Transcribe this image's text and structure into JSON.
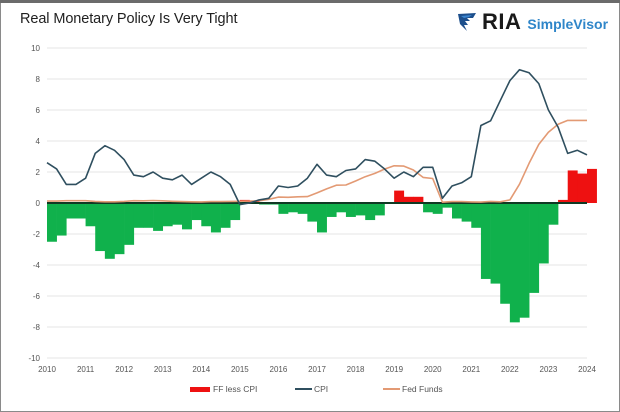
{
  "header": {
    "title": "Real Monetary Policy Is Very Tight",
    "logo": {
      "icon": "ria-eagle-shield-icon",
      "brand": "RIA",
      "product": "SimpleVisor"
    }
  },
  "colors": {
    "positive_bar": "#ee1111",
    "negative_bar": "#10b14c",
    "cpi_line": "#2f4f5f",
    "fed_funds_line": "#e39a74",
    "zero_line": "#0f3a24",
    "grid": "#e6e6e6",
    "brand_blue": "#2f86c9"
  },
  "chart_data": {
    "type": "bar",
    "title": "Real Monetary Policy Is Very Tight",
    "xlabel": "",
    "ylabel": "",
    "ylim": [
      -10,
      10
    ],
    "yticks": [
      10,
      8,
      6,
      4,
      2,
      0,
      -2,
      -4,
      -6,
      -8,
      -10
    ],
    "xlim": [
      2010,
      2024
    ],
    "xticks": [
      "2010",
      "2011",
      "2012",
      "2013",
      "2014",
      "2015",
      "2016",
      "2017",
      "2018",
      "2019",
      "2020",
      "2021",
      "2022",
      "2023",
      "2024"
    ],
    "grid": true,
    "legend_position": "bottom",
    "legend": [
      "FF less CPI",
      "CPI",
      "Fed Funds"
    ],
    "x": [
      2010.0,
      2010.25,
      2010.5,
      2010.75,
      2011.0,
      2011.25,
      2011.5,
      2011.75,
      2012.0,
      2012.25,
      2012.5,
      2012.75,
      2013.0,
      2013.25,
      2013.5,
      2013.75,
      2014.0,
      2014.25,
      2014.5,
      2014.75,
      2015.0,
      2015.25,
      2015.5,
      2015.75,
      2016.0,
      2016.25,
      2016.5,
      2016.75,
      2017.0,
      2017.25,
      2017.5,
      2017.75,
      2018.0,
      2018.25,
      2018.5,
      2018.75,
      2019.0,
      2019.25,
      2019.5,
      2019.75,
      2020.0,
      2020.25,
      2020.5,
      2020.75,
      2021.0,
      2021.25,
      2021.5,
      2021.75,
      2022.0,
      2022.25,
      2022.5,
      2022.75,
      2023.0,
      2023.25,
      2023.5,
      2023.75,
      2024.0
    ],
    "series": [
      {
        "name": "CPI",
        "kind": "line",
        "values": [
          2.6,
          2.2,
          1.2,
          1.2,
          1.6,
          3.2,
          3.7,
          3.4,
          2.8,
          1.8,
          1.7,
          2.0,
          1.6,
          1.5,
          1.8,
          1.2,
          1.6,
          2.0,
          1.7,
          1.2,
          -0.1,
          0.0,
          0.2,
          0.3,
          1.1,
          1.0,
          1.1,
          1.6,
          2.5,
          1.8,
          1.7,
          2.1,
          2.2,
          2.8,
          2.7,
          2.2,
          1.6,
          2.0,
          1.7,
          2.3,
          2.3,
          0.3,
          1.1,
          1.3,
          1.7,
          5.0,
          5.3,
          6.6,
          7.9,
          8.6,
          8.4,
          7.7,
          6.0,
          4.9,
          3.2,
          3.4,
          3.1
        ]
      },
      {
        "name": "Fed Funds",
        "kind": "line",
        "values": [
          0.12,
          0.12,
          0.15,
          0.15,
          0.15,
          0.1,
          0.08,
          0.08,
          0.1,
          0.15,
          0.14,
          0.16,
          0.14,
          0.11,
          0.09,
          0.08,
          0.07,
          0.09,
          0.09,
          0.1,
          0.11,
          0.13,
          0.14,
          0.24,
          0.38,
          0.37,
          0.4,
          0.41,
          0.65,
          0.91,
          1.15,
          1.16,
          1.42,
          1.7,
          1.91,
          2.19,
          2.4,
          2.38,
          2.13,
          1.65,
          1.58,
          0.05,
          0.09,
          0.09,
          0.07,
          0.06,
          0.1,
          0.08,
          0.2,
          1.21,
          2.56,
          3.78,
          4.57,
          5.08,
          5.33,
          5.33,
          5.33
        ]
      },
      {
        "name": "FF less CPI",
        "kind": "bar",
        "values": [
          -2.5,
          -2.1,
          -1.0,
          -1.0,
          -1.5,
          -3.1,
          -3.6,
          -3.3,
          -2.7,
          -1.6,
          -1.6,
          -1.8,
          -1.5,
          -1.4,
          -1.7,
          -1.1,
          -1.5,
          -1.9,
          -1.6,
          -1.1,
          0.2,
          0.1,
          -0.1,
          -0.1,
          -0.7,
          -0.6,
          -0.7,
          -1.2,
          -1.9,
          -0.9,
          -0.6,
          -0.9,
          -0.8,
          -1.1,
          -0.8,
          0.0,
          0.8,
          0.4,
          0.4,
          -0.6,
          -0.7,
          -0.3,
          -1.0,
          -1.2,
          -1.6,
          -4.9,
          -5.2,
          -6.5,
          -7.7,
          -7.4,
          -5.8,
          -3.9,
          -1.4,
          0.2,
          2.1,
          1.9,
          2.2
        ]
      }
    ]
  }
}
